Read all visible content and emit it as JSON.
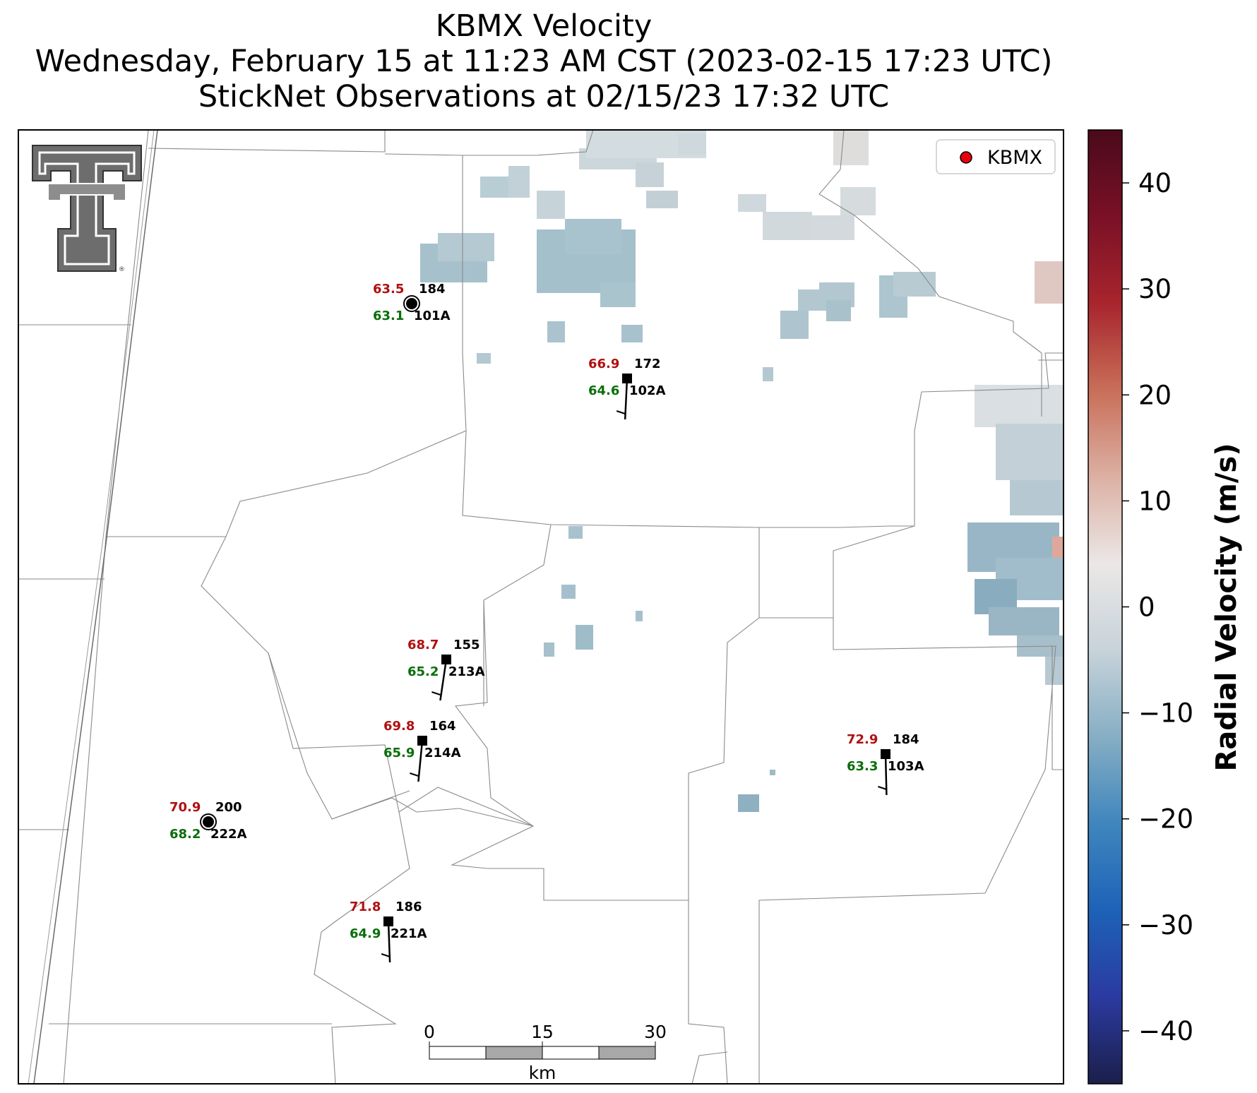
{
  "header": {
    "title_line1": "KBMX Velocity",
    "title_line2": "Wednesday, February 15 at 11:23 AM CST (2023-02-15 17:23 UTC)",
    "title_line3": "StickNet Observations at 02/15/23 17:32 UTC"
  },
  "legend": {
    "marker_color": "#e8000b",
    "label": "KBMX"
  },
  "colorbar": {
    "label": "Radial Velocity (m/s)",
    "range": [
      -45,
      45
    ],
    "ticks": [
      40,
      30,
      20,
      10,
      0,
      -10,
      -20,
      -30,
      -40
    ],
    "tick_labels": [
      "40",
      "30",
      "20",
      "10",
      "0",
      "−10",
      "−20",
      "−30",
      "−40"
    ],
    "colors": [
      "#1b1f4a",
      "#2b3aa0",
      "#1d62b8",
      "#3f86bd",
      "#86aec4",
      "#c7d3da",
      "#ebe7e6",
      "#dcb0a3",
      "#c86e58",
      "#a8252d",
      "#7a1026",
      "#4a0a1a"
    ]
  },
  "scale_bar": {
    "labels": [
      "0",
      "15",
      "30"
    ],
    "unit": "km"
  },
  "stations": [
    {
      "id": "101A",
      "temp": "63.5",
      "dew": "63.1",
      "dir": "184",
      "calm": true
    },
    {
      "id": "102A",
      "temp": "66.9",
      "dew": "64.6",
      "dir": "172",
      "calm": false
    },
    {
      "id": "213A",
      "temp": "68.7",
      "dew": "65.2",
      "dir": "155",
      "calm": false
    },
    {
      "id": "214A",
      "temp": "69.8",
      "dew": "65.9",
      "dir": "164",
      "calm": false
    },
    {
      "id": "103A",
      "temp": "72.9",
      "dew": "63.3",
      "dir": "184",
      "calm": false
    },
    {
      "id": "222A",
      "temp": "70.9",
      "dew": "68.2",
      "dir": "200",
      "calm": true
    },
    {
      "id": "221A",
      "temp": "71.8",
      "dew": "64.9",
      "dir": "186",
      "calm": false
    }
  ],
  "colors": {
    "temp": "#b01010",
    "dew": "#0a6e0a"
  },
  "logo_name": "texas-tech-double-t-logo"
}
